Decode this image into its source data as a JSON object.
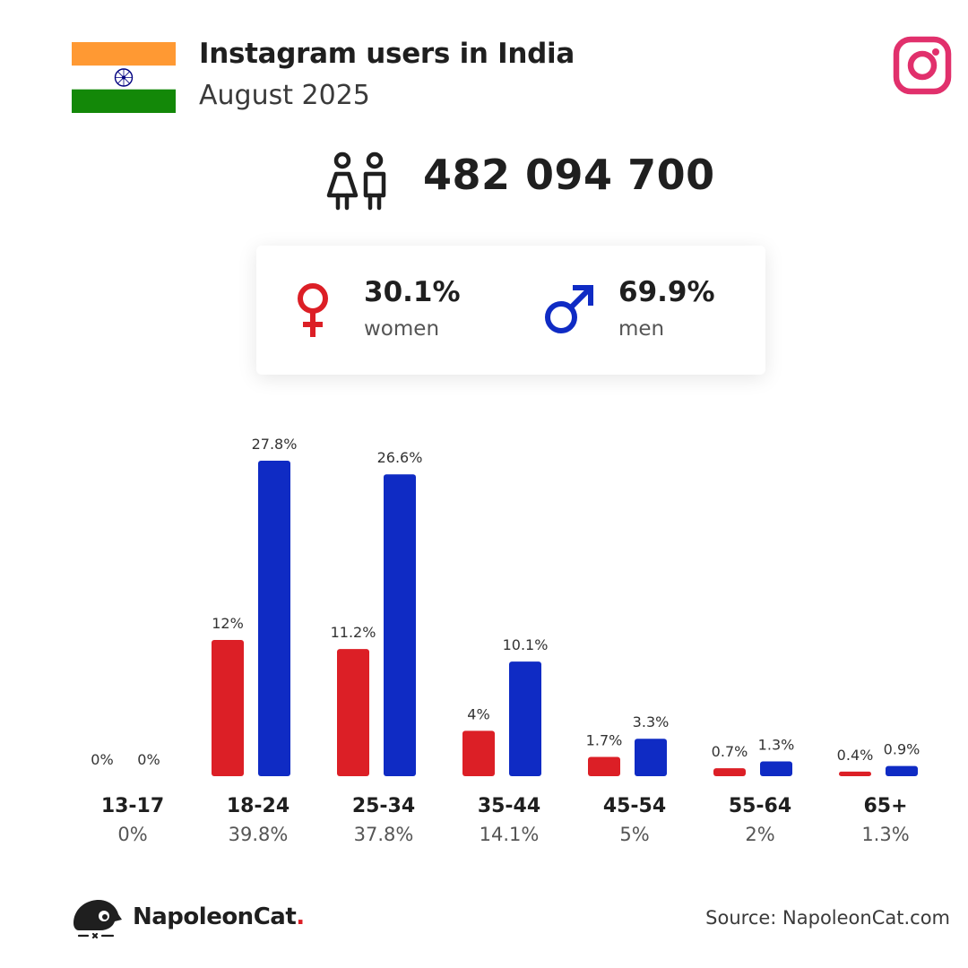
{
  "header": {
    "title": "Instagram users in India",
    "subtitle": "August 2025"
  },
  "total_users": "482 094 700",
  "gender": {
    "women_pct": "30.1%",
    "women_label": "women",
    "men_pct": "69.9%",
    "men_label": "men"
  },
  "colors": {
    "women": "#dc1f26",
    "men": "#0f2bc4",
    "instagram": "#e1306c",
    "flag_saffron": "#ff9933",
    "flag_green": "#138808",
    "chakra": "#000080"
  },
  "icons": [
    "india-flag-icon",
    "instagram-icon",
    "people-icon",
    "female-icon",
    "male-icon",
    "napoleoncat-logo-icon"
  ],
  "chart_data": {
    "type": "bar",
    "categories": [
      "13-17",
      "18-24",
      "25-34",
      "35-44",
      "45-54",
      "55-64",
      "65+"
    ],
    "category_totals": [
      "0%",
      "39.8%",
      "37.8%",
      "14.1%",
      "5%",
      "2%",
      "1.3%"
    ],
    "series": [
      {
        "name": "women",
        "color": "#dc1f26",
        "values": [
          0,
          12,
          11.2,
          4,
          1.7,
          0.7,
          0.4
        ],
        "labels": [
          "0%",
          "12%",
          "11.2%",
          "4%",
          "1.7%",
          "0.7%",
          "0.4%"
        ]
      },
      {
        "name": "men",
        "color": "#0f2bc4",
        "values": [
          0,
          27.8,
          26.6,
          10.1,
          3.3,
          1.3,
          0.9
        ],
        "labels": [
          "0%",
          "27.8%",
          "26.6%",
          "10.1%",
          "3.3%",
          "1.3%",
          "0.9%"
        ]
      }
    ],
    "ylim": [
      0,
      27.8
    ],
    "grid": false,
    "legend": "none"
  },
  "footer": {
    "brand": "NapoleonCat",
    "brand_dot": ".",
    "source": "Source: NapoleonCat.com"
  }
}
